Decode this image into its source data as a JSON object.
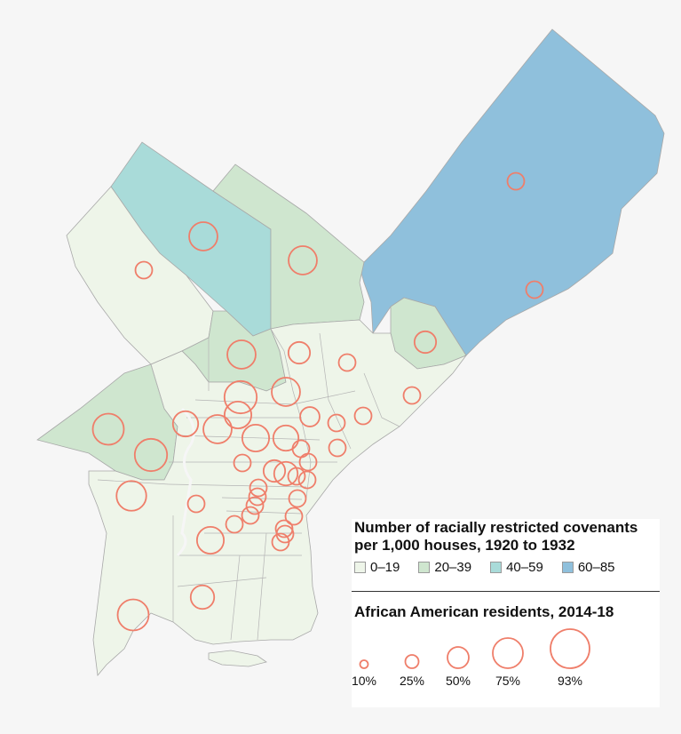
{
  "map": {
    "fill_colors": {
      "0-19": "#eef5e9",
      "20-39": "#cfe6cf",
      "40-59": "#a9dbd9",
      "60-85": "#8fc0dc"
    },
    "border_color": "#a8a8a8",
    "circle_color": "#ef7e6a",
    "circles_pct": [
      10,
      25,
      50,
      75,
      93,
      10,
      25,
      50,
      10,
      25,
      50,
      75,
      10,
      25,
      50,
      10,
      25,
      50,
      10,
      25,
      50,
      10,
      25,
      50,
      10,
      25,
      10,
      25,
      10,
      10,
      10,
      10,
      25,
      10,
      10,
      10,
      10,
      10,
      10,
      10,
      10,
      10,
      25,
      25,
      50
    ]
  },
  "legend": {
    "title_line1": "Number of racially restricted covenants",
    "title_line2": "per 1,000 houses, 1920 to 1932",
    "classes": [
      {
        "label": "0–19",
        "color": "#eef5e9"
      },
      {
        "label": "20–39",
        "color": "#cfe6cf"
      },
      {
        "label": "40–59",
        "color": "#a9dbd9"
      },
      {
        "label": "60–85",
        "color": "#8fc0dc"
      }
    ],
    "size_title": "African American residents, 2014-18",
    "sizes": [
      {
        "label": "10%",
        "value": 10
      },
      {
        "label": "25%",
        "value": 25
      },
      {
        "label": "50%",
        "value": 50
      },
      {
        "label": "75%",
        "value": 75
      },
      {
        "label": "93%",
        "value": 93
      }
    ]
  }
}
